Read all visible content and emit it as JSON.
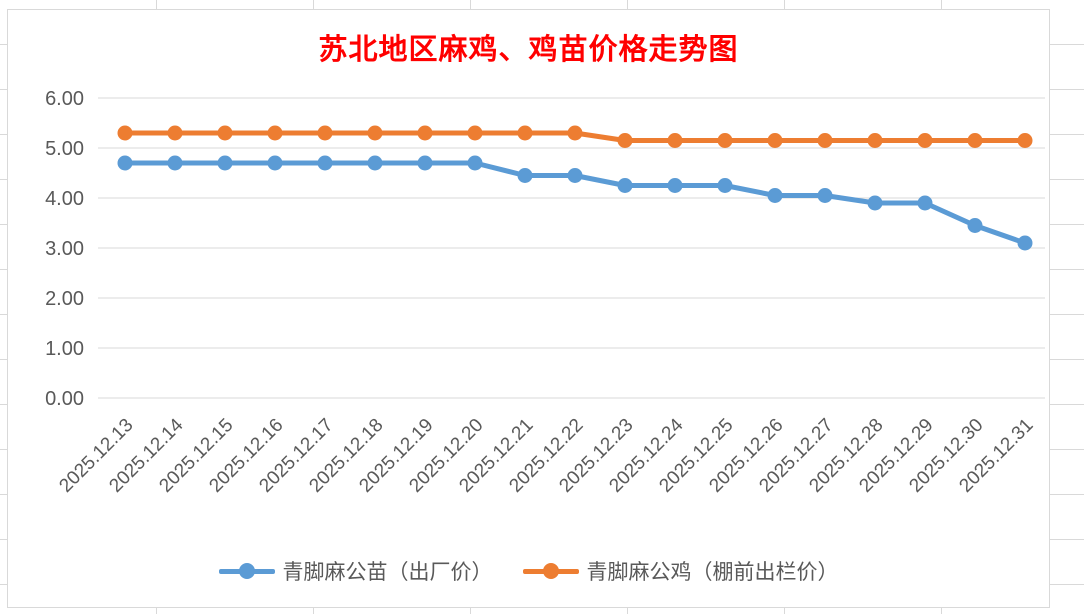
{
  "chart_data": {
    "type": "line",
    "title": "苏北地区麻鸡、鸡苗价格走势图",
    "categories": [
      "2025.12.13",
      "2025.12.14",
      "2025.12.15",
      "2025.12.16",
      "2025.12.17",
      "2025.12.18",
      "2025.12.19",
      "2025.12.20",
      "2025.12.21",
      "2025.12.22",
      "2025.12.23",
      "2025.12.24",
      "2025.12.25",
      "2025.12.26",
      "2025.12.27",
      "2025.12.28",
      "2025.12.29",
      "2025.12.30",
      "2025.12.31"
    ],
    "series": [
      {
        "name": "青脚麻公苗（出厂价）",
        "color": "#5B9BD5",
        "values": [
          4.7,
          4.7,
          4.7,
          4.7,
          4.7,
          4.7,
          4.7,
          4.7,
          4.45,
          4.45,
          4.25,
          4.25,
          4.25,
          4.05,
          4.05,
          3.9,
          3.9,
          3.45,
          3.1
        ]
      },
      {
        "name": "青脚麻公鸡（棚前出栏价）",
        "color": "#ED7D31",
        "values": [
          5.3,
          5.3,
          5.3,
          5.3,
          5.3,
          5.3,
          5.3,
          5.3,
          5.3,
          5.3,
          5.15,
          5.15,
          5.15,
          5.15,
          5.15,
          5.15,
          5.15,
          5.15,
          5.15
        ]
      }
    ],
    "xlabel": "",
    "ylabel": "",
    "ylim": [
      0,
      6
    ],
    "y_tick_step": 1,
    "y_tick_labels": [
      "0.00",
      "1.00",
      "2.00",
      "3.00",
      "4.00",
      "5.00",
      "6.00"
    ],
    "grid": "horizontal",
    "legend_position": "bottom",
    "marker": "circle",
    "x_label_rotation_deg": 45
  },
  "styles": {
    "title_color": "#FF0000",
    "axis_label_color": "#595959",
    "gridline_color": "#D9D9D9",
    "sheet_gridline_color": "#D9D9D9",
    "chart_border_color": "#D9D9D9",
    "plot_background": "#FFFFFF"
  }
}
